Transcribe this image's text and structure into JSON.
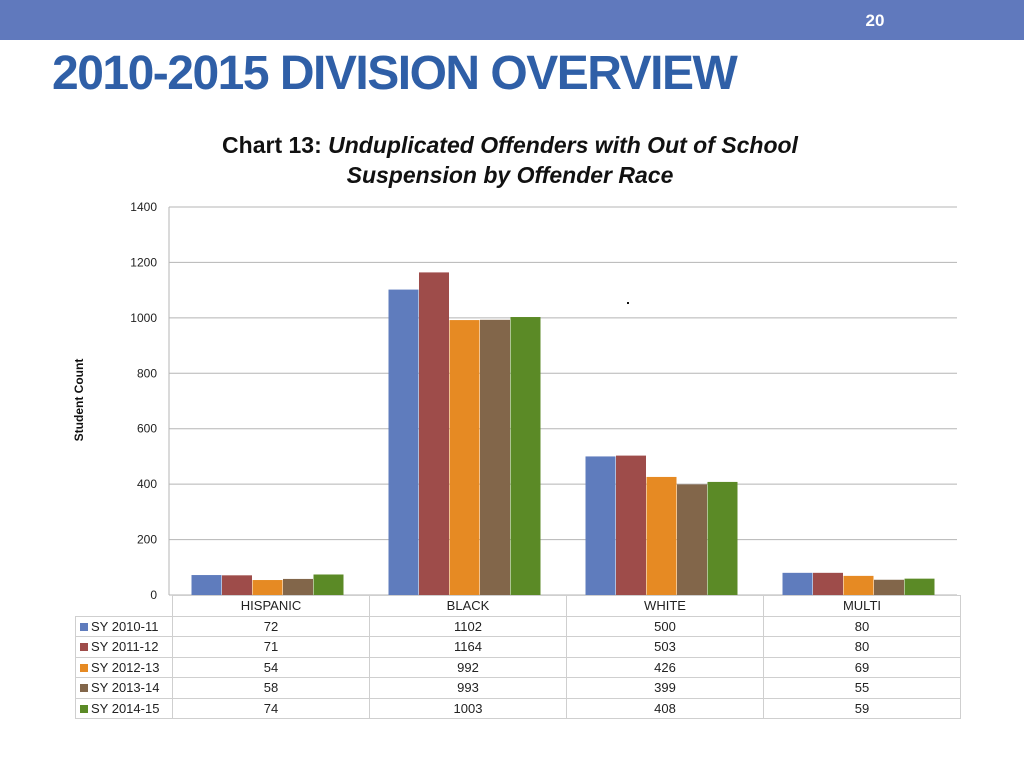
{
  "slide": {
    "page_number": "20",
    "title": "2010-2015 DIVISION OVERVIEW"
  },
  "chart_data": {
    "type": "bar",
    "title_prefix": "Chart 13:",
    "title_italic_line1": "Unduplicated Offenders with  Out of School",
    "title_italic_line2": "Suspension by Offender Race",
    "ylabel": "Student Count",
    "xlabel": "",
    "ylim": [
      0,
      1400
    ],
    "yticks": [
      0,
      200,
      400,
      600,
      800,
      1000,
      1200,
      1400
    ],
    "grid": true,
    "legend_placement": "data-table",
    "categories": [
      "HISPANIC",
      "BLACK",
      "WHITE",
      "MULTI"
    ],
    "series": [
      {
        "name": "SY 2010-11",
        "color": "#5f7cbd",
        "values": [
          72,
          1102,
          500,
          80
        ]
      },
      {
        "name": "SY 2011-12",
        "color": "#9e4c4a",
        "values": [
          71,
          1164,
          503,
          80
        ]
      },
      {
        "name": "SY 2012-13",
        "color": "#e68a23",
        "values": [
          54,
          992,
          426,
          69
        ]
      },
      {
        "name": "SY 2013-14",
        "color": "#82664a",
        "values": [
          58,
          993,
          399,
          55
        ]
      },
      {
        "name": "SY 2014-15",
        "color": "#5b8a26",
        "values": [
          74,
          1003,
          408,
          59
        ]
      }
    ]
  }
}
